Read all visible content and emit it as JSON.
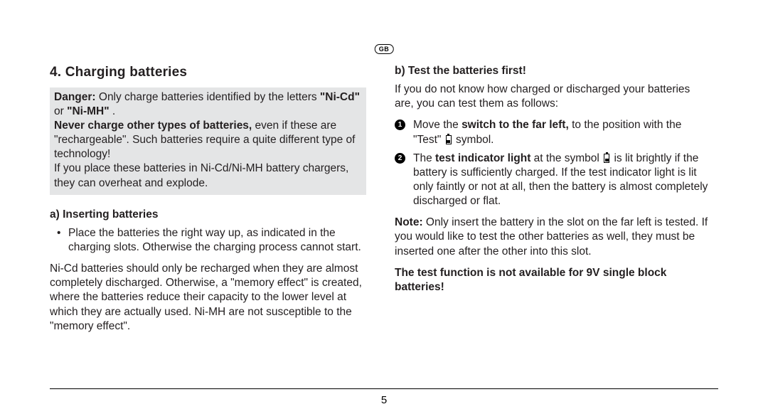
{
  "badge": "GB",
  "page_number": "5",
  "left": {
    "title": "4.  Charging batteries",
    "warn_danger_label": "Danger:",
    "warn_line1_rest": " Only charge batteries identified by the letters ",
    "warn_nicd": "\"Ni-Cd\"",
    "warn_or": " or ",
    "warn_nimh": "\"Ni-MH\"",
    "warn_dot1": " .",
    "warn_never": "Never charge other types of batteries,",
    "warn_never_rest": " even if these are \"rechargeable\". Such batteries require a quite different type of technology!",
    "warn_para2": "If you place these batteries in Ni-Cd/Ni-MH battery chargers, they can overheat and explode.",
    "sub_a": "a) Inserting batteries",
    "bullet_a": "Place the batteries the right way up, as indicated in the charging slots. Otherwise the charging process cannot start.",
    "para_a": "Ni-Cd batteries should only be recharged when they are almost completely discharged. Otherwise, a \"memory effect\" is created, where the batteries reduce their capacity to the lower level at which they are actually used. Ni-MH are not susceptible to the \"memory effect\"."
  },
  "right": {
    "sub_b": "b) Test the batteries first!",
    "intro_b": "If you do not know how charged or discharged your batteries are, you can test them as follows:",
    "step1_pre": "Move the ",
    "step1_bold": "switch to the far left,",
    "step1_post": " to the position with the \"Test\"  ",
    "step1_end": "  symbol.",
    "step2_pre": "The ",
    "step2_bold": "test indicator light",
    "step2_mid": " at the symbol  ",
    "step2_end": "  is lit brightly if the battery is sufficiently charged. If the test indicator light is lit only faintly or not at all, then the battery is almost completely discharged or flat.",
    "note_label": "Note:",
    "note_text": " Only insert the battery in the slot on the far left is tested. If you would like to test the other batteries as well, they must be inserted one after the other into this slot.",
    "note_bold": "The test function is not available for 9V single block batteries!"
  }
}
